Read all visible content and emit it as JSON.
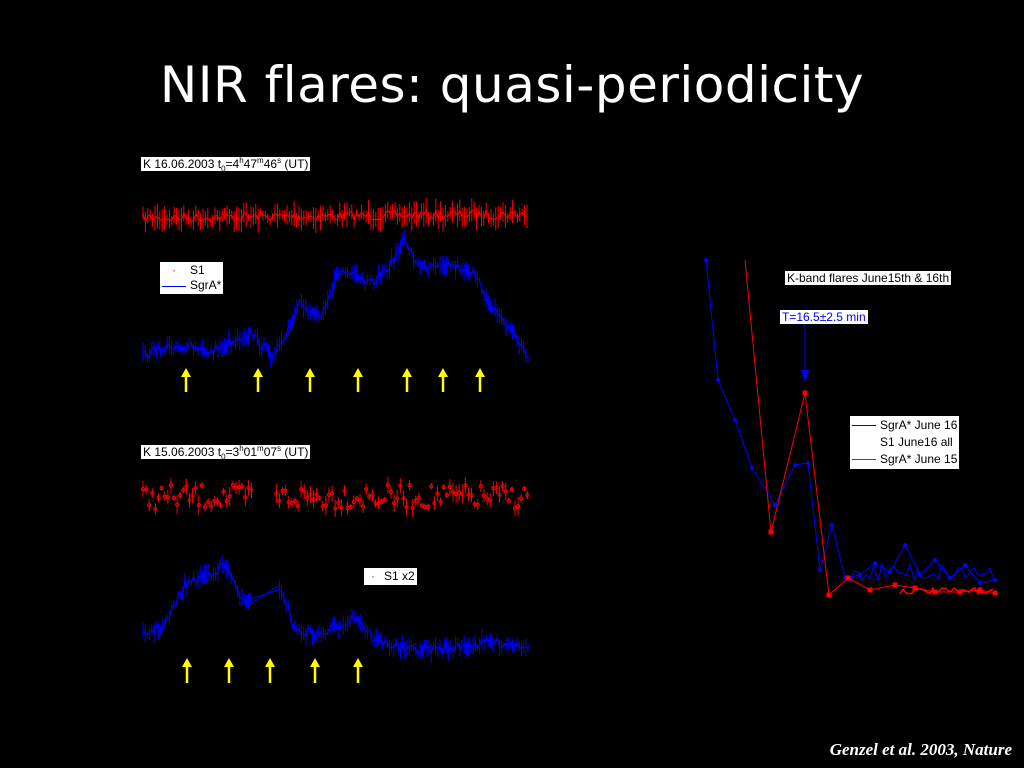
{
  "slide": {
    "title": "NIR flares: quasi-periodicity",
    "citation": "Genzel et al. 2003, Nature"
  },
  "colors": {
    "background": "#000000",
    "sgra": "#0000ff",
    "s1": "#ff0000",
    "arrow": "#ffff00"
  },
  "chart_data": [
    {
      "type": "line",
      "panel": "top-left",
      "header": {
        "prefix": "K 16.06.2003 t",
        "sub": "0",
        "eq": "=4",
        "h": "h",
        "m_val": "47",
        "m": "m",
        "s_val": "46",
        "s": "s",
        "suffix": "(UT)"
      },
      "series": [
        {
          "name": "S1",
          "color": "#ff0000",
          "trend": "flat, noisy"
        },
        {
          "name": "SgrA*",
          "color": "#0000ff",
          "trend": "rises in steps to a peak near the middle-right, then declines"
        }
      ],
      "arrows": 7
    },
    {
      "type": "line",
      "panel": "bottom-left",
      "header": {
        "prefix": "K 15.06.2003 t",
        "sub": "0",
        "eq": "=3",
        "h": "h",
        "m_val": "01",
        "m": "m",
        "s_val": "07",
        "s": "s",
        "suffix": "(UT)"
      },
      "legend": "S1 x2",
      "series": [
        {
          "name": "S1 x2",
          "color": "#ff0000",
          "trend": "flat, noisy, gap near left third"
        },
        {
          "name": "SgrA*",
          "color": "#0000ff",
          "trend": "peak early, decay with sub-flares, flat tail"
        }
      ],
      "arrows": 5
    },
    {
      "type": "line",
      "panel": "right",
      "title": "K-band flares June15th & 16th",
      "annotation": "T=16.5±2.5 min",
      "series": [
        {
          "name": "SgrA* June 16",
          "color": "#0000ff"
        },
        {
          "name": "S1 June16 all",
          "color": "#000000"
        },
        {
          "name": "SgrA* June 15",
          "color": "#ff0000"
        }
      ]
    }
  ]
}
